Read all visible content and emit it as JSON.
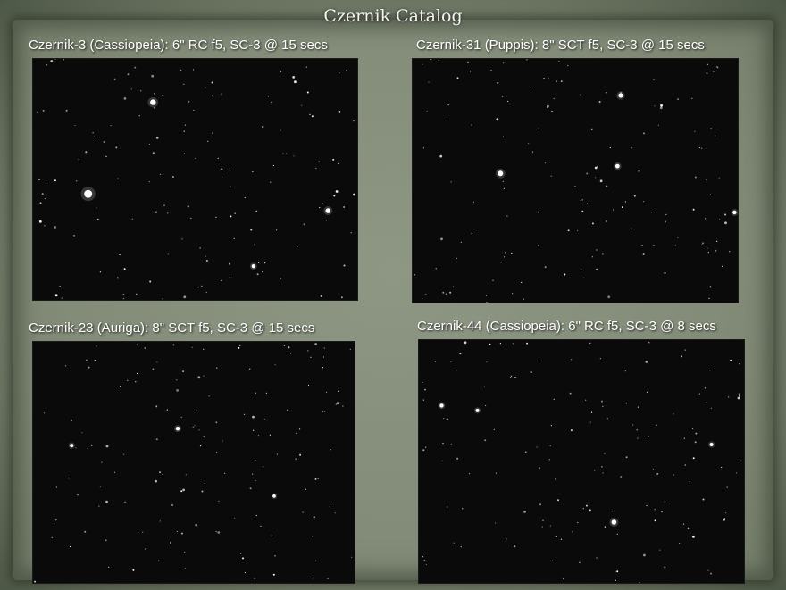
{
  "slide": {
    "title": "Czernik Catalog"
  },
  "panels": [
    {
      "caption": "Czernik-3 (Cassiopeia): 6\" RC f5, SC-3 @ 15 secs",
      "image_subject": "star field"
    },
    {
      "caption": "Czernik-31 (Puppis): 8\" SCT f5, SC-3 @ 15 secs",
      "image_subject": "star field"
    },
    {
      "caption": "Czernik-23 (Auriga): 8\" SCT f5, SC-3 @ 15 secs",
      "image_subject": "star field"
    },
    {
      "caption": "Czernik-44 (Cassiopeia): 6\" RC f5, SC-3 @ 8 secs",
      "image_subject": "star field"
    }
  ],
  "colors": {
    "background": "#7f8875",
    "caption_text": "#ffffff",
    "photo_background": "#0a0a0a"
  }
}
